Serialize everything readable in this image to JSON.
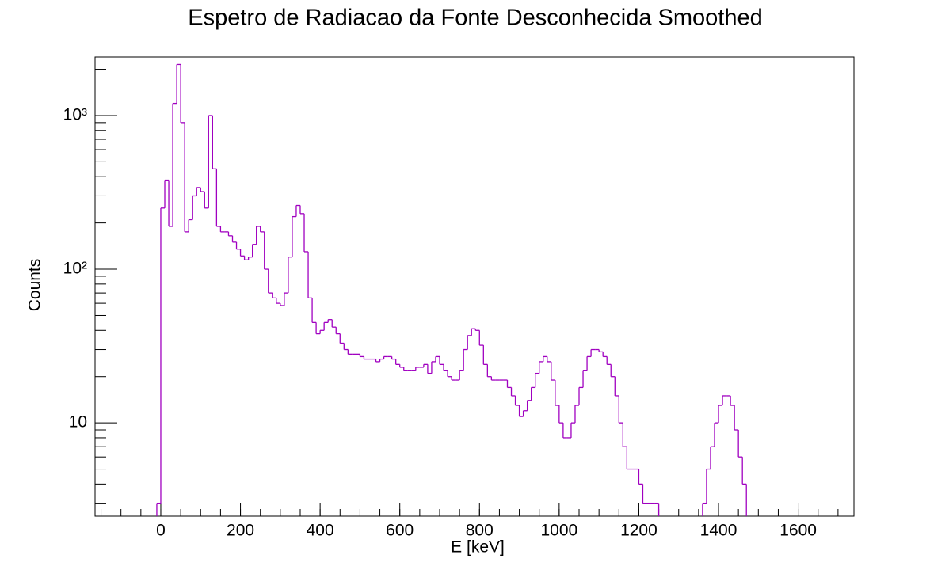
{
  "chart_data": {
    "type": "histogram",
    "title": "Espetro de Radiacao da Fonte Desconhecida Smoothed",
    "x_label": "E [keV]",
    "y_label": "Counts",
    "color": "#a000c0",
    "log_y": true,
    "xlim": [
      -165,
      1740
    ],
    "ylim": [
      2.47,
      2405
    ],
    "xticks": [
      0,
      200,
      400,
      600,
      800,
      1000,
      1200,
      1400,
      1600
    ],
    "yticks": [
      10,
      {
        "value": 100,
        "label": "10²"
      },
      {
        "value": 1000,
        "label": "10³"
      }
    ],
    "bins": [
      -10,
      0,
      10,
      20,
      30,
      40,
      50,
      60,
      70,
      80,
      90,
      100,
      110,
      120,
      130,
      140,
      150,
      160,
      170,
      180,
      190,
      200,
      210,
      220,
      230,
      240,
      250,
      260,
      270,
      280,
      290,
      300,
      310,
      320,
      330,
      340,
      350,
      360,
      370,
      380,
      390,
      400,
      410,
      420,
      430,
      440,
      450,
      460,
      470,
      480,
      490,
      500,
      510,
      520,
      530,
      540,
      550,
      560,
      570,
      580,
      590,
      600,
      610,
      620,
      630,
      640,
      650,
      660,
      670,
      680,
      690,
      700,
      710,
      720,
      730,
      740,
      750,
      760,
      770,
      780,
      790,
      800,
      810,
      820,
      830,
      840,
      850,
      860,
      870,
      880,
      890,
      900,
      910,
      920,
      930,
      940,
      950,
      960,
      970,
      980,
      990,
      1000,
      1010,
      1020,
      1030,
      1040,
      1050,
      1060,
      1070,
      1080,
      1090,
      1100,
      1110,
      1120,
      1130,
      1140,
      1150,
      1160,
      1170,
      1180,
      1190,
      1200,
      1210,
      1220,
      1230,
      1240,
      1250,
      1260,
      1270,
      1280,
      1290,
      1300,
      1310,
      1320,
      1330,
      1340,
      1350,
      1360,
      1370,
      1380,
      1390,
      1400,
      1410,
      1420,
      1430,
      1440,
      1450,
      1460,
      1470
    ],
    "values": [
      3,
      250,
      380,
      190,
      1200,
      2150,
      900,
      175,
      210,
      300,
      340,
      320,
      250,
      1000,
      450,
      190,
      175,
      175,
      165,
      150,
      135,
      122,
      115,
      120,
      145,
      190,
      175,
      100,
      70,
      65,
      60,
      58,
      70,
      120,
      220,
      260,
      230,
      130,
      65,
      45,
      38,
      40,
      45,
      47,
      42,
      38,
      33,
      30,
      28,
      28,
      28,
      27,
      26,
      26,
      26,
      25,
      26,
      27,
      27,
      26,
      24,
      23,
      22,
      22,
      22,
      23,
      23,
      24,
      21,
      25,
      27,
      24,
      22,
      20,
      19,
      19,
      22,
      30,
      37,
      41,
      40,
      32,
      24,
      20,
      19,
      19,
      19,
      19,
      17,
      15,
      13,
      11,
      12,
      14,
      17,
      21,
      25,
      27,
      25,
      19,
      13,
      10,
      8,
      8,
      10,
      13,
      17,
      22,
      27,
      30,
      30,
      29,
      27,
      24,
      20,
      15,
      10,
      7,
      5,
      5,
      5,
      4,
      3,
      3,
      3,
      3,
      null,
      null,
      null,
      null,
      null,
      null,
      null,
      null,
      null,
      null,
      null,
      3,
      5,
      7,
      10,
      13,
      15,
      15,
      13,
      9,
      6,
      4
    ]
  }
}
